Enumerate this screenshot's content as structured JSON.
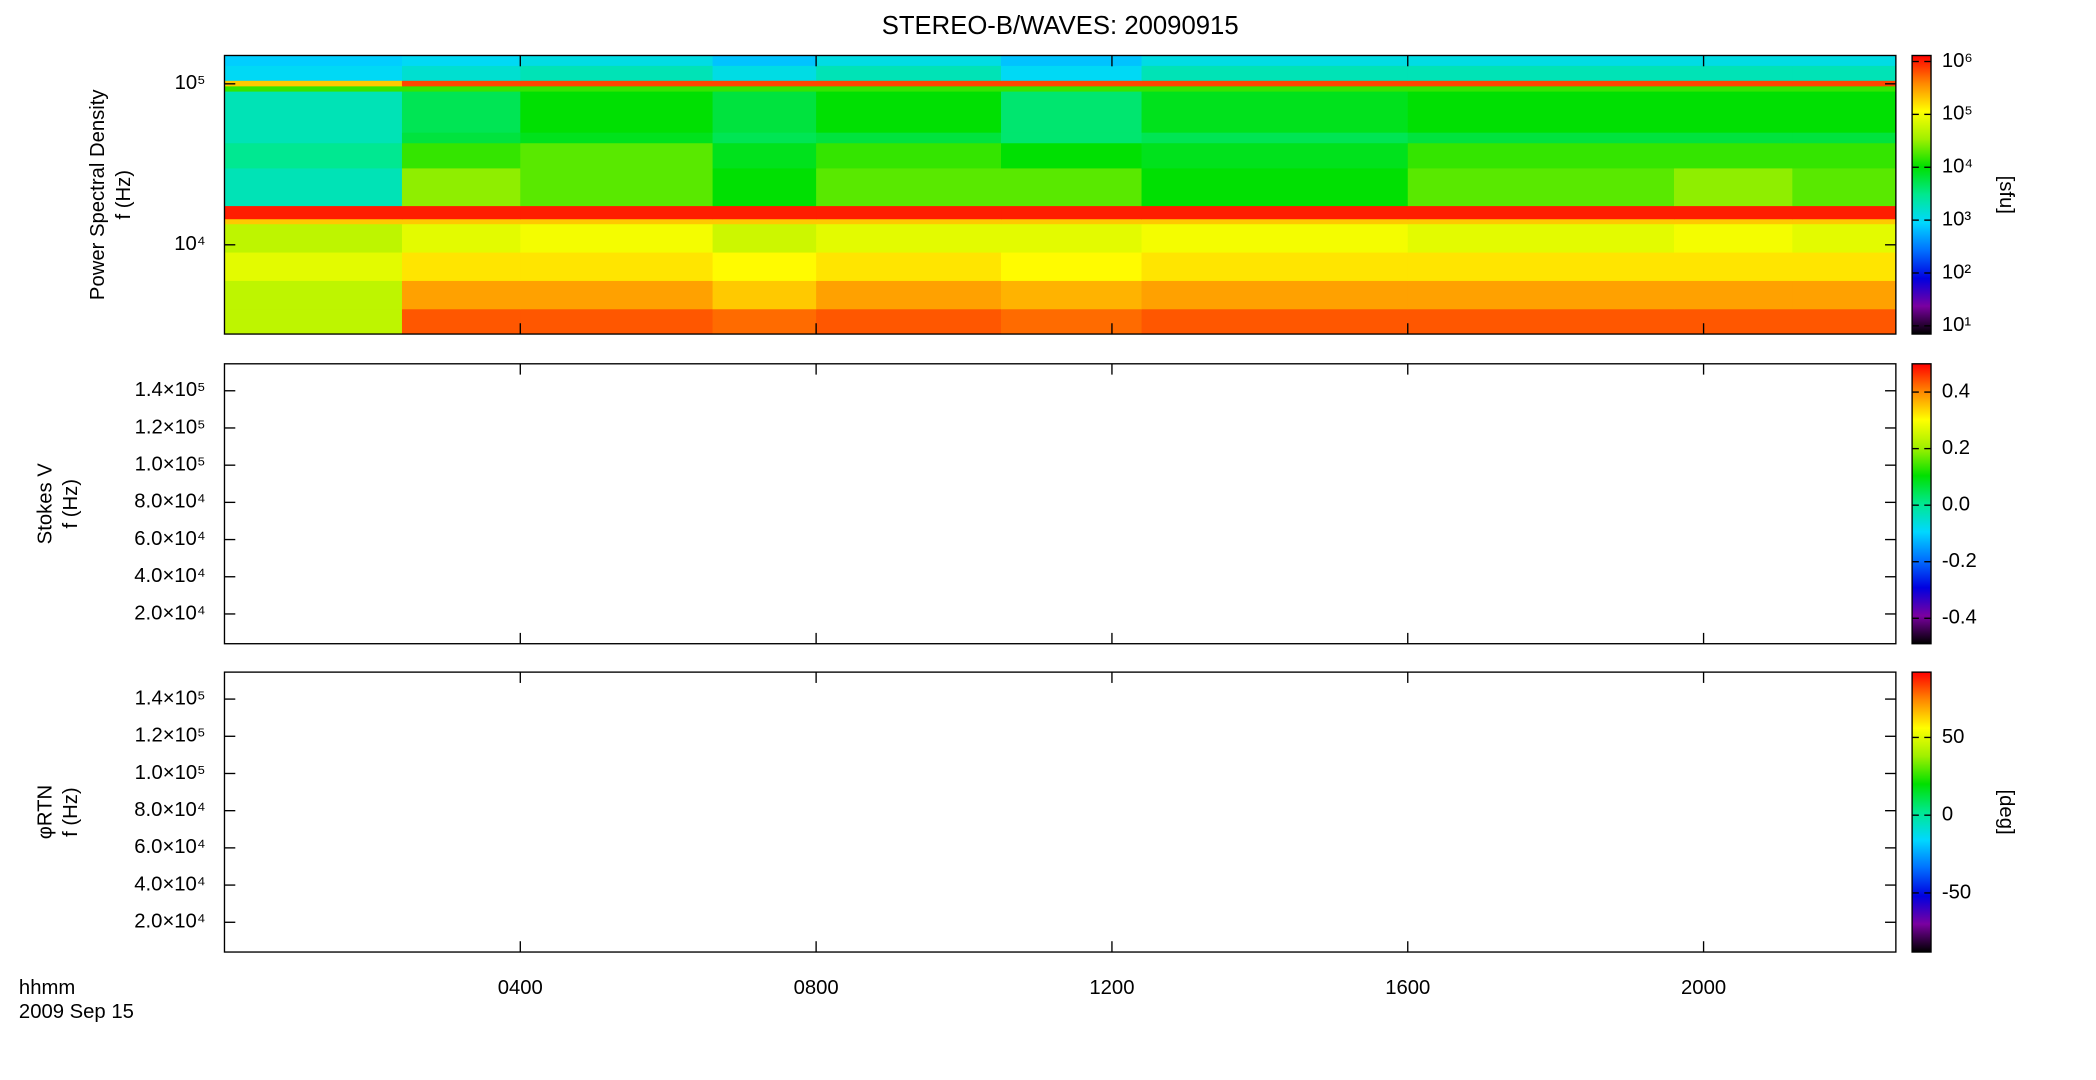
{
  "chart_data": [
    {
      "type": "heatmap",
      "title": "STEREO-B/WAVES: 20090915",
      "ylabel": [
        "Power Spectral Density",
        "f (Hz)"
      ],
      "xlim": [
        0,
        22.6
      ],
      "xticks": [
        {
          "value": 4,
          "label": "0400"
        },
        {
          "value": 8,
          "label": "0800"
        },
        {
          "value": 12,
          "label": "1200"
        },
        {
          "value": 16,
          "label": "1600"
        },
        {
          "value": 20,
          "label": "2000"
        }
      ],
      "ylim": [
        2790,
        150000
      ],
      "ylog": true,
      "yticks": [
        {
          "value": 10000,
          "label": "10⁴"
        },
        {
          "value": 100000,
          "label": "10⁵"
        }
      ],
      "colormap": [
        "#000000",
        "#7a00a0",
        "#0000e0",
        "#0070ff",
        "#00d8ff",
        "#00e890",
        "#00e000",
        "#a0f000",
        "#ffff00",
        "#ff8800",
        "#ff0000"
      ],
      "colorbar": {
        "label": "[sfu]",
        "log": true,
        "clim": [
          7,
          1300000
        ],
        "ticks": [
          {
            "value": 10,
            "label": "10¹"
          },
          {
            "value": 100,
            "label": "10²"
          },
          {
            "value": 1000,
            "label": "10³"
          },
          {
            "value": 10000,
            "label": "10⁴"
          },
          {
            "value": 100000,
            "label": "10⁵"
          },
          {
            "value": 1000000,
            "label": "10⁶"
          }
        ]
      },
      "time_edges": [
        0,
        2.4,
        4.0,
        6.6,
        8.0,
        10.5,
        12.4,
        16.0,
        19.6,
        21.2,
        22.6
      ],
      "freq_edges": [
        2790,
        4000,
        6000,
        9000,
        13500,
        14500,
        17500,
        30000,
        43000,
        50000,
        90000,
        97000,
        105000,
        130000,
        150000
      ],
      "z": [
        [
          50000,
          600000,
          600000,
          500000,
          600000,
          500000,
          600000,
          600000,
          600000,
          600000
        ],
        [
          50000,
          300000,
          300000,
          200000,
          300000,
          250000,
          300000,
          300000,
          300000,
          300000
        ],
        [
          80000,
          150000,
          150000,
          120000,
          150000,
          120000,
          150000,
          150000,
          150000,
          150000
        ],
        [
          50000,
          80000,
          100000,
          60000,
          80000,
          80000,
          100000,
          80000,
          100000,
          80000
        ],
        [
          200000,
          200000,
          200000,
          200000,
          200000,
          200000,
          200000,
          200000,
          200000,
          200000
        ],
        [
          1000000,
          1000000,
          1000000,
          1000000,
          1000000,
          1000000,
          1000000,
          1000000,
          1000000,
          1000000
        ],
        [
          2000,
          30000,
          20000,
          10000,
          20000,
          20000,
          10000,
          20000,
          30000,
          20000
        ],
        [
          3000,
          15000,
          20000,
          8000,
          15000,
          10000,
          8000,
          15000,
          15000,
          15000
        ],
        [
          2000,
          6000,
          8000,
          5000,
          6000,
          4000,
          5000,
          6000,
          6000,
          6000
        ],
        [
          2000,
          5000,
          10000,
          6000,
          10000,
          4000,
          8000,
          10000,
          10000,
          10000
        ],
        [
          15000,
          15000,
          15000,
          15000,
          15000,
          15000,
          15000,
          15000,
          15000,
          15000
        ],
        [
          200000,
          700000,
          700000,
          700000,
          700000,
          700000,
          700000,
          700000,
          700000,
          700000
        ],
        [
          1000,
          1500,
          2000,
          1200,
          2000,
          1000,
          2000,
          2000,
          2000,
          2000
        ],
        [
          800,
          1000,
          1200,
          700,
          1200,
          700,
          1200,
          1200,
          1200,
          1200
        ]
      ]
    },
    {
      "type": "heatmap",
      "ylabel": [
        "Stokes V",
        "f (Hz)"
      ],
      "xlim": [
        0,
        22.6
      ],
      "xticks": [
        {
          "value": 4,
          "label": "0400"
        },
        {
          "value": 8,
          "label": "0800"
        },
        {
          "value": 12,
          "label": "1200"
        },
        {
          "value": 16,
          "label": "1600"
        },
        {
          "value": 20,
          "label": "2000"
        }
      ],
      "ylim": [
        4000,
        154500
      ],
      "yticks": [
        {
          "value": 20000,
          "label": "2.0×10⁴"
        },
        {
          "value": 40000,
          "label": "4.0×10⁴"
        },
        {
          "value": 60000,
          "label": "6.0×10⁴"
        },
        {
          "value": 80000,
          "label": "8.0×10⁴"
        },
        {
          "value": 100000,
          "label": "1.0×10⁵"
        },
        {
          "value": 120000,
          "label": "1.2×10⁵"
        },
        {
          "value": 140000,
          "label": "1.4×10⁵"
        }
      ],
      "colormap": [
        "#000000",
        "#7a00a0",
        "#0000e0",
        "#0070ff",
        "#00d8ff",
        "#00e890",
        "#00e000",
        "#a0f000",
        "#ffff00",
        "#ff8800",
        "#ff0000"
      ],
      "colorbar": {
        "clim": [
          -0.49,
          0.5
        ],
        "ticks": [
          -0.4,
          -0.2,
          {
            "value": 0,
            "label": "0.0"
          },
          0.2,
          0.4
        ]
      }
    },
    {
      "type": "heatmap",
      "ylabel": [
        "φRTN",
        "f (Hz)"
      ],
      "xlabel": [
        "hhmm",
        "2009 Sep 15"
      ],
      "xlim": [
        0,
        22.6
      ],
      "xticks": [
        {
          "value": 4,
          "label": "0400"
        },
        {
          "value": 8,
          "label": "0800"
        },
        {
          "value": 12,
          "label": "1200"
        },
        {
          "value": 16,
          "label": "1600"
        },
        {
          "value": 20,
          "label": "2000"
        }
      ],
      "ylim": [
        4000,
        154500
      ],
      "yticks": [
        {
          "value": 20000,
          "label": "2.0×10⁴"
        },
        {
          "value": 40000,
          "label": "4.0×10⁴"
        },
        {
          "value": 60000,
          "label": "6.0×10⁴"
        },
        {
          "value": 80000,
          "label": "8.0×10⁴"
        },
        {
          "value": 100000,
          "label": "1.0×10⁵"
        },
        {
          "value": 120000,
          "label": "1.2×10⁵"
        },
        {
          "value": 140000,
          "label": "1.4×10⁵"
        }
      ],
      "colormap": [
        "#000000",
        "#7a00a0",
        "#0000e0",
        "#0070ff",
        "#00d8ff",
        "#00e890",
        "#00e000",
        "#a0f000",
        "#ffff00",
        "#ff8800",
        "#ff0000"
      ],
      "colorbar": {
        "label": "[deg]",
        "clim": [
          -88,
          92
        ],
        "ticks": [
          -50,
          0,
          50
        ]
      }
    }
  ]
}
